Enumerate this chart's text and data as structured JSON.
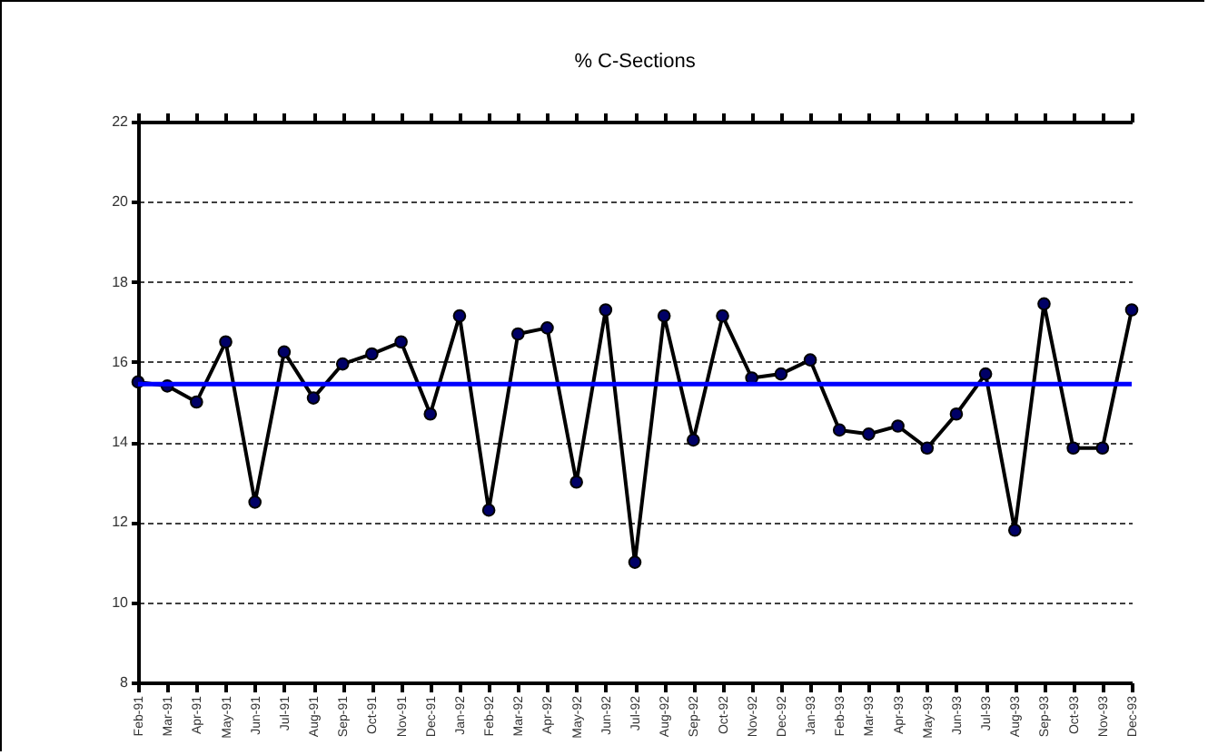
{
  "chart_data": {
    "type": "line",
    "title": "% C-Sections",
    "categories": [
      "Feb-91",
      "Mar-91",
      "Apr-91",
      "May-91",
      "Jun-91",
      "Jul-91",
      "Aug-91",
      "Sep-91",
      "Oct-91",
      "Nov-91",
      "Dec-91",
      "Jan-92",
      "Feb-92",
      "Mar-92",
      "Apr-92",
      "May-92",
      "Jun-92",
      "Jul-92",
      "Aug-92",
      "Sep-92",
      "Oct-92",
      "Nov-92",
      "Dec-92",
      "Jan-93",
      "Feb-93",
      "Mar-93",
      "Apr-93",
      "May-93",
      "Jun-93",
      "Jul-93",
      "Aug-93",
      "Sep-93",
      "Oct-93",
      "Nov-93",
      "Dec-93"
    ],
    "series": [
      {
        "color": "#000000",
        "values": [
          15.5,
          15.4,
          15.0,
          16.5,
          12.5,
          16.25,
          15.1,
          15.95,
          16.2,
          16.5,
          14.7,
          17.15,
          12.3,
          16.7,
          16.85,
          13.0,
          17.3,
          11.0,
          17.15,
          14.05,
          17.15,
          15.6,
          15.7,
          16.05,
          14.3,
          14.2,
          14.4,
          13.85,
          14.7,
          15.7,
          11.8,
          17.45,
          13.85,
          13.85,
          17.3
        ]
      }
    ],
    "ylim": [
      8,
      22
    ],
    "yticks": [
      8,
      10,
      12,
      14,
      16,
      18,
      20,
      22
    ],
    "ref_lines": [
      {
        "axis": "y",
        "value": 15.45,
        "color": "#0000ff"
      }
    ],
    "grid": "y",
    "marker": "circle"
  }
}
